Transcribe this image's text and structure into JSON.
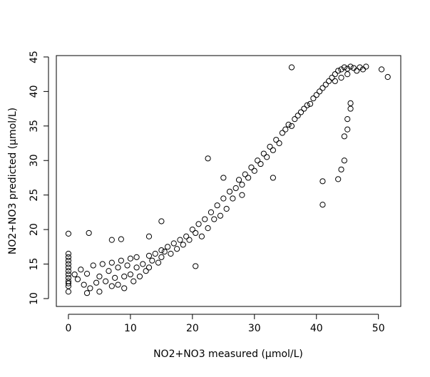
{
  "chart_data": {
    "type": "scatter",
    "x_label": "NO2+NO3 measured (µmol/L)",
    "y_label": "NO2+NO3 predicted (µmol/L)",
    "xlim": [
      -1.95,
      53.6
    ],
    "ylim": [
      8.86,
      45.2
    ],
    "xticks": [
      0,
      10,
      20,
      30,
      40,
      50
    ],
    "yticks": [
      10,
      15,
      20,
      25,
      30,
      35,
      40,
      45
    ],
    "color": "#000000",
    "x": [
      0,
      0,
      0,
      0,
      0,
      0,
      0,
      0,
      0,
      0,
      0,
      0,
      1,
      1.5,
      2,
      2.5,
      3,
      3,
      3.5,
      4,
      4.5,
      5,
      5,
      5.5,
      6,
      6.5,
      7,
      7,
      7.5,
      8,
      8,
      8.5,
      9,
      9,
      9.5,
      10,
      10,
      10.5,
      11,
      11,
      11.5,
      12,
      12.5,
      13,
      13,
      13.5,
      14,
      14.5,
      15,
      15,
      15.5,
      16,
      16.5,
      17,
      17.5,
      18,
      18.5,
      19,
      19.5,
      20,
      20.5,
      21,
      21.5,
      22,
      22.5,
      23,
      23.5,
      24,
      24.5,
      25,
      25.5,
      26,
      26.5,
      27,
      27.5,
      28,
      28.5,
      29,
      29.5,
      30,
      30.5,
      31,
      31.5,
      32,
      32.5,
      33,
      33.5,
      34,
      34.5,
      35,
      35.5,
      36,
      36.5,
      37,
      37.5,
      38,
      38.5,
      39,
      39.5,
      40,
      40.5,
      41,
      41.5,
      42,
      42.5,
      43,
      43,
      43.5,
      44,
      44,
      44.5,
      45,
      45,
      45.5,
      46,
      46.5,
      47,
      47.5,
      48,
      0,
      3.3,
      7,
      8.5,
      15,
      20.5,
      22.5,
      36,
      41,
      41,
      43.5,
      44,
      44.5,
      44.5,
      45,
      45,
      45.5,
      45.5,
      50.5,
      51.5,
      13,
      25,
      28,
      33
    ],
    "values": [
      11,
      11.8,
      12.5,
      13,
      13.5,
      14,
      14.5,
      15,
      15.5,
      16,
      16.5,
      12.2,
      13.5,
      12.8,
      14.2,
      12,
      10.8,
      13.6,
      11.5,
      14.8,
      12.3,
      13.2,
      11,
      15,
      12.5,
      14,
      11.8,
      15.2,
      13,
      14.5,
      12,
      15.5,
      13.2,
      11.5,
      14.8,
      13.5,
      15.8,
      12.5,
      14.5,
      16,
      13.2,
      15,
      14,
      16.2,
      14.5,
      15.5,
      16.5,
      15.2,
      17,
      16,
      16.8,
      17.5,
      16.5,
      18,
      17.2,
      18.5,
      17.8,
      19,
      18.5,
      20,
      19.5,
      20.8,
      19,
      21.5,
      20.2,
      22.5,
      21.5,
      23.5,
      22,
      24.5,
      23,
      25.5,
      24.5,
      26,
      27.2,
      26.5,
      28,
      27.5,
      29,
      28.5,
      30,
      29.5,
      31,
      30.5,
      32,
      31.5,
      33,
      32.5,
      34,
      34.5,
      35.2,
      35,
      36,
      36.5,
      37,
      37.5,
      38,
      38.2,
      39,
      39.5,
      40,
      40.5,
      41,
      41.5,
      42,
      42.5,
      41.5,
      43,
      43.2,
      42,
      43.5,
      43.3,
      42.5,
      43.6,
      43.4,
      43,
      43.5,
      43.2,
      43.6,
      19.4,
      19.5,
      18.5,
      18.6,
      21.2,
      14.7,
      30.3,
      43.5,
      23.6,
      27,
      27.3,
      28.7,
      30,
      33.5,
      34.5,
      36,
      37.5,
      38.3,
      43.2,
      42.1,
      19,
      27.5,
      25,
      27.5
    ]
  }
}
